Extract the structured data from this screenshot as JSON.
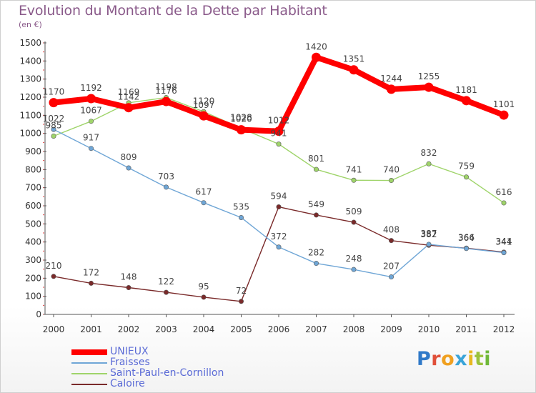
{
  "header": {
    "title": "Evolution du Montant de la Dette par Habitant",
    "subtitle": "(en €)"
  },
  "logo": {
    "letters": [
      {
        "ch": "P",
        "color": "#2f79c8"
      },
      {
        "ch": "r",
        "color": "#e0503a"
      },
      {
        "ch": "o",
        "color": "#f0a020"
      },
      {
        "ch": "x",
        "color": "#3aa4d8"
      },
      {
        "ch": "i",
        "color": "#e8b820"
      },
      {
        "ch": "t",
        "color": "#9ac23c"
      },
      {
        "ch": "i",
        "color": "#6fb83a"
      }
    ]
  },
  "chart_data": {
    "type": "line",
    "title": "Evolution du Montant de la Dette par Habitant",
    "subtitle": "(en €)",
    "x": [
      "2000",
      "2001",
      "2002",
      "2003",
      "2004",
      "2005",
      "2006",
      "2007",
      "2008",
      "2009",
      "2010",
      "2011",
      "2012"
    ],
    "ylim": [
      0,
      1500
    ],
    "yticks": [
      0,
      100,
      200,
      300,
      400,
      500,
      600,
      700,
      800,
      900,
      1000,
      1100,
      1200,
      1300,
      1400,
      1500
    ],
    "grid": false,
    "legend_position": "bottom-left",
    "series": [
      {
        "name": "UNIEUX",
        "color": "#ff0000",
        "values": [
          1170,
          1192,
          1142,
          1176,
          1097,
          1020,
          1012,
          1420,
          1351,
          1244,
          1255,
          1181,
          1101
        ]
      },
      {
        "name": "Fraisses",
        "color": "#6fa6d6",
        "values": [
          1022,
          917,
          809,
          703,
          617,
          535,
          372,
          282,
          248,
          207,
          387,
          364,
          341
        ]
      },
      {
        "name": "Saint-Paul-en-Cornillon",
        "color": "#9fd46a",
        "values": [
          985,
          1067,
          1169,
          1198,
          1120,
          1028,
          941,
          801,
          741,
          740,
          832,
          759,
          616
        ]
      },
      {
        "name": "Caloire",
        "color": "#7a2a2a",
        "values": [
          210,
          172,
          148,
          122,
          95,
          72,
          594,
          549,
          509,
          408,
          382,
          366,
          344
        ]
      }
    ]
  }
}
